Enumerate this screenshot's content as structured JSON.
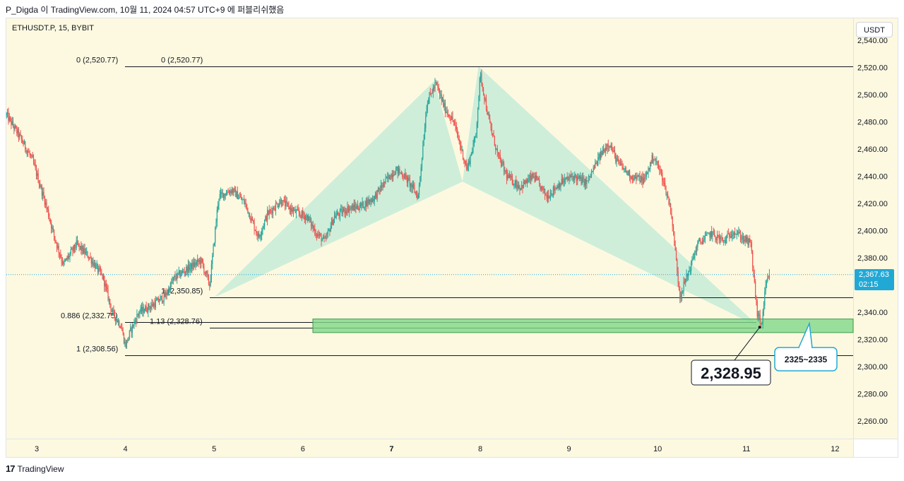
{
  "header": {
    "text": "P_Digda 이 TradingView.com, 10월 11, 2024 04:57 UTC+9 에 퍼블리쉬했음"
  },
  "symbol": {
    "text": "ETHUSDT.P, 15, BYBIT"
  },
  "price_scale": {
    "currency": "USDT"
  },
  "current_price": {
    "price": "2,367.63",
    "countdown": "02:15"
  },
  "footer": {
    "brand": "TradingView",
    "logo": "17"
  },
  "colors": {
    "up": "#26a69a",
    "down": "#ef5350",
    "pattern": "#a8e6d4",
    "zone": "#7fd88a",
    "accent": "#22a8d5",
    "background": "#fdf9e0"
  },
  "chart_data": {
    "type": "candlestick",
    "symbol": "ETHUSDT.P",
    "interval": "15",
    "exchange": "BYBIT",
    "ylim": [
      2248,
      2546
    ],
    "y_ticks": [
      "2,260.00",
      "2,280.00",
      "2,300.00",
      "2,320.00",
      "2,340.00",
      "2,360.00",
      "2,380.00",
      "2,400.00",
      "2,420.00",
      "2,440.00",
      "2,460.00",
      "2,480.00",
      "2,500.00",
      "2,520.00",
      "2,540.00"
    ],
    "x_ticks": [
      {
        "label": "3",
        "day": 3,
        "bold": false
      },
      {
        "label": "4",
        "day": 4,
        "bold": false
      },
      {
        "label": "5",
        "day": 5,
        "bold": false
      },
      {
        "label": "6",
        "day": 6,
        "bold": false
      },
      {
        "label": "7",
        "day": 7,
        "bold": true
      },
      {
        "label": "8",
        "day": 8,
        "bold": false
      },
      {
        "label": "9",
        "day": 9,
        "bold": false
      },
      {
        "label": "10",
        "day": 10,
        "bold": false
      },
      {
        "label": "11",
        "day": 11,
        "bold": false
      },
      {
        "label": "12",
        "day": 12,
        "bold": false
      }
    ],
    "price_path": [
      [
        2.66,
        2485
      ],
      [
        2.8,
        2470
      ],
      [
        2.95,
        2452
      ],
      [
        3.1,
        2420
      ],
      [
        3.2,
        2395
      ],
      [
        3.3,
        2375
      ],
      [
        3.45,
        2390
      ],
      [
        3.6,
        2380
      ],
      [
        3.75,
        2365
      ],
      [
        3.85,
        2340
      ],
      [
        3.95,
        2330
      ],
      [
        4.0,
        2315
      ],
      [
        4.05,
        2325
      ],
      [
        4.15,
        2340
      ],
      [
        4.3,
        2345
      ],
      [
        4.45,
        2352
      ],
      [
        4.55,
        2365
      ],
      [
        4.7,
        2372
      ],
      [
        4.85,
        2378
      ],
      [
        4.95,
        2360
      ],
      [
        5.05,
        2425
      ],
      [
        5.2,
        2430
      ],
      [
        5.35,
        2420
      ],
      [
        5.5,
        2395
      ],
      [
        5.6,
        2412
      ],
      [
        5.75,
        2422
      ],
      [
        5.9,
        2414
      ],
      [
        6.05,
        2410
      ],
      [
        6.15,
        2398
      ],
      [
        6.25,
        2392
      ],
      [
        6.35,
        2410
      ],
      [
        6.5,
        2416
      ],
      [
        6.65,
        2418
      ],
      [
        6.8,
        2424
      ],
      [
        6.95,
        2438
      ],
      [
        7.05,
        2445
      ],
      [
        7.15,
        2440
      ],
      [
        7.3,
        2425
      ],
      [
        7.4,
        2495
      ],
      [
        7.5,
        2508
      ],
      [
        7.6,
        2490
      ],
      [
        7.7,
        2480
      ],
      [
        7.85,
        2445
      ],
      [
        7.95,
        2470
      ],
      [
        8.0,
        2515
      ],
      [
        8.1,
        2480
      ],
      [
        8.2,
        2455
      ],
      [
        8.3,
        2440
      ],
      [
        8.45,
        2432
      ],
      [
        8.6,
        2440
      ],
      [
        8.75,
        2425
      ],
      [
        8.9,
        2435
      ],
      [
        9.05,
        2440
      ],
      [
        9.2,
        2435
      ],
      [
        9.35,
        2455
      ],
      [
        9.45,
        2465
      ],
      [
        9.55,
        2450
      ],
      [
        9.7,
        2440
      ],
      [
        9.85,
        2437
      ],
      [
        9.95,
        2455
      ],
      [
        10.05,
        2440
      ],
      [
        10.15,
        2415
      ],
      [
        10.25,
        2352
      ],
      [
        10.35,
        2370
      ],
      [
        10.45,
        2390
      ],
      [
        10.6,
        2398
      ],
      [
        10.75,
        2392
      ],
      [
        10.85,
        2400
      ],
      [
        10.95,
        2395
      ],
      [
        11.05,
        2390
      ],
      [
        11.12,
        2340
      ],
      [
        11.17,
        2330
      ],
      [
        11.22,
        2360
      ],
      [
        11.27,
        2367.63
      ]
    ],
    "current_price": 2367.63,
    "fib_levels": [
      {
        "label": "0 (2,520.77)",
        "price": 2520.77
      },
      {
        "label": "1 (2,350.85)",
        "price": 2350.85
      },
      {
        "label": "0.886 (2,332.75)",
        "price": 2332.75
      },
      {
        "label": "1.13 (2,328.76)",
        "price": 2328.76
      },
      {
        "label": "1 (2,308.56)",
        "price": 2308.56
      }
    ],
    "harmonic_pattern": {
      "X": {
        "day": 5.0,
        "price": 2350.85
      },
      "A": {
        "day": 7.48,
        "price": 2510
      },
      "B": {
        "day": 7.8,
        "price": 2436
      },
      "C": {
        "day": 7.98,
        "price": 2520.77
      },
      "D": {
        "day": 11.15,
        "price": 2328.95
      }
    },
    "zone": {
      "low": 2325,
      "high": 2335,
      "label": "2325~2335"
    },
    "annotation": {
      "label": "2,328.95",
      "price": 2328.95
    }
  }
}
